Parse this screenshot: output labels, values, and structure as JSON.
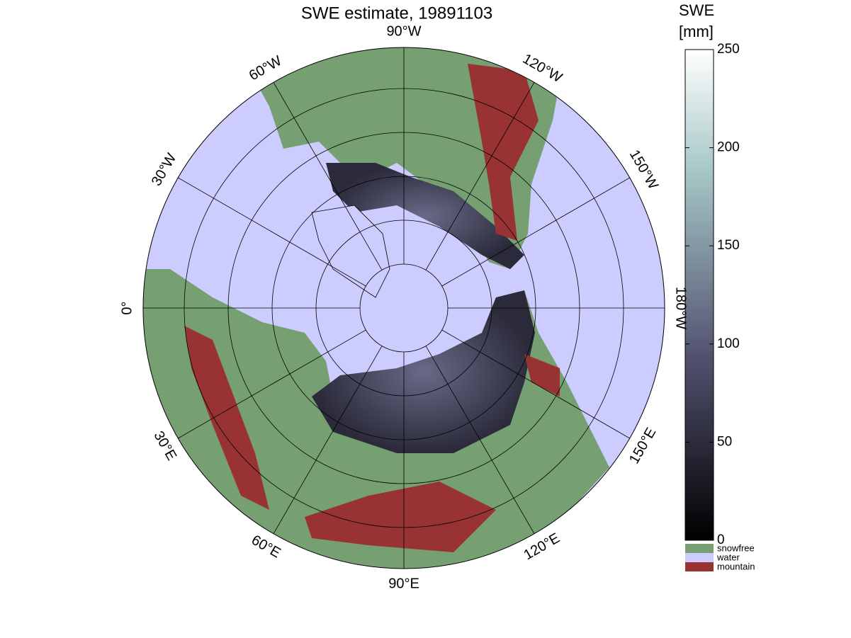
{
  "title": "SWE estimate, 19891103",
  "map": {
    "longitude_labels": [
      "0°",
      "30°W",
      "60°W",
      "90°W",
      "120°W",
      "150°W",
      "180°W",
      "150°E",
      "120°E",
      "90°E",
      "60°E",
      "30°E"
    ],
    "ocean_color": "#ccccff"
  },
  "colorbar": {
    "label_lines": [
      "SWE",
      "[mm]"
    ],
    "lim": [
      0,
      250
    ],
    "ticks": [
      0,
      50,
      100,
      150,
      200,
      250
    ],
    "categories": [
      {
        "label": "snowfree",
        "color": "#769f72"
      },
      {
        "label": "water",
        "color": "#ccccff"
      },
      {
        "label": "mountain",
        "color": "#993333"
      }
    ]
  }
}
